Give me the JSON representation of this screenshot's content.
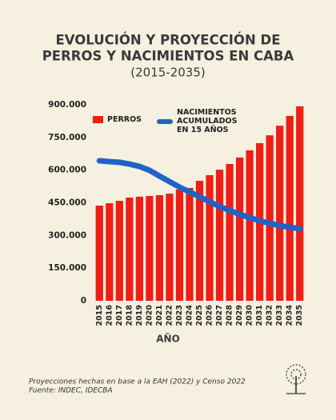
{
  "chart_data": {
    "type": "bar_line",
    "title": [
      "EVOLUCIÓN Y PROYECCIÓN DE",
      "PERROS Y NACIMIENTOS EN CABA"
    ],
    "subtitle": "(2015-2035)",
    "x_label": "AÑO",
    "categories": [
      "2015",
      "2016",
      "2017",
      "2018",
      "2019",
      "2020",
      "2021",
      "2022",
      "2023",
      "2024",
      "2025",
      "2026",
      "2027",
      "2028",
      "2029",
      "2030",
      "2031",
      "2032",
      "2033",
      "2034",
      "2035"
    ],
    "series": [
      {
        "name": "PERROS",
        "type": "bar",
        "color": "#f01e14",
        "values": [
          437000,
          448000,
          459000,
          474000,
          478000,
          481000,
          485000,
          492000,
          511000,
          518000,
          551000,
          577000,
          602000,
          628000,
          658000,
          691000,
          724000,
          760000,
          804000,
          849000,
          893000
        ]
      },
      {
        "name": "NACIMIENTOS ACUMULADOS EN 15 AÑOS",
        "type": "line",
        "color": "#1f63c6",
        "values": [
          643000,
          639000,
          636000,
          628000,
          617000,
          599000,
          573000,
          547000,
          522000,
          500000,
          478000,
          455000,
          433000,
          415000,
          397000,
          382000,
          367000,
          356000,
          345000,
          338000,
          331000
        ]
      }
    ],
    "ylim": [
      0,
      900000
    ],
    "yticks": [
      0,
      {
        "value": 150000,
        "label": "150.000"
      },
      {
        "value": 300000,
        "label": "300.000"
      },
      {
        "value": 450000,
        "label": "450.000"
      },
      {
        "value": 600000,
        "label": "600.000"
      },
      {
        "value": 750000,
        "label": "750.000"
      },
      {
        "value": 900000,
        "label": "900.000"
      }
    ],
    "grid": false,
    "notes": [
      "Proyecciones hechas en base a la EAH (2022) y Censo 2022",
      "Fuente: INDEC, IDECBA"
    ]
  }
}
